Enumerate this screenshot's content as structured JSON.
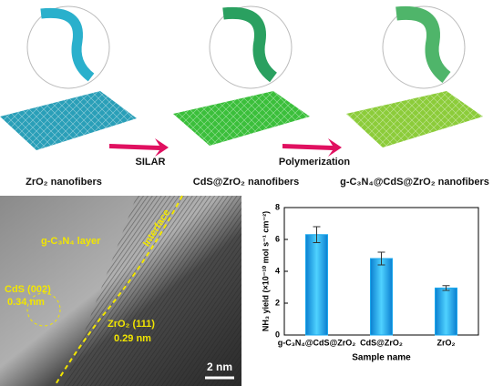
{
  "schematic": {
    "labels": [
      "ZrO₂ nanofibers",
      "CdS@ZrO₂ nanofibers",
      "g-C₃N₄@CdS@ZrO₂ nanofibers"
    ],
    "arrows": [
      "SILAR",
      "Polymerization"
    ]
  },
  "tem": {
    "layer": "g-C₃N₄ layer",
    "interface": "Interface",
    "cds_plane": "CdS (002)",
    "cds_spacing": "0.34 nm",
    "zro2_plane": "ZrO₂ (111)",
    "zro2_spacing": "0.29 nm",
    "scale": "2 nm"
  },
  "chart_data": {
    "type": "bar",
    "ylabel": "NH₃ yield (×10⁻¹⁰ mol s⁻¹ cm⁻²)",
    "xlabel": "Sample name",
    "categories": [
      "g-C₃N₄@CdS@ZrO₂",
      "CdS@ZrO₂",
      "ZrO₂"
    ],
    "values": [
      6.3,
      4.8,
      2.95
    ],
    "errors": [
      0.5,
      0.4,
      0.15
    ],
    "color": "#1aa8ee",
    "ylim": [
      0,
      8
    ],
    "yticks": [
      0,
      2,
      4,
      6,
      8
    ]
  }
}
